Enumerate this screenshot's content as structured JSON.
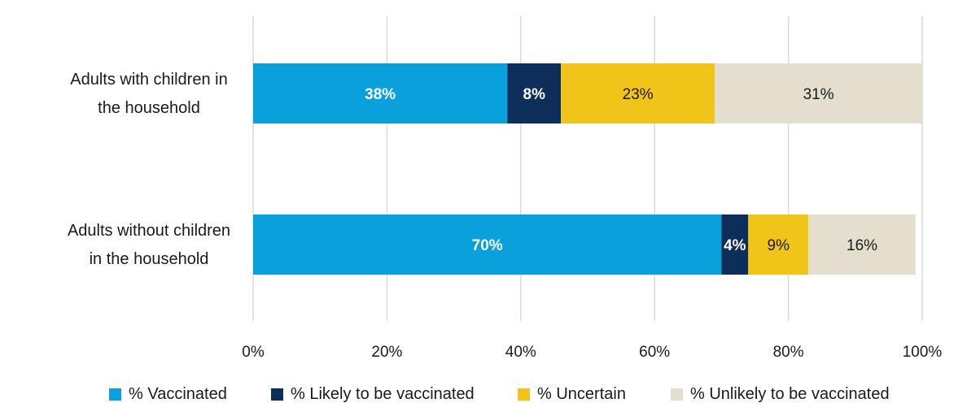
{
  "chart_data": {
    "type": "bar",
    "orientation": "horizontal",
    "stacked": true,
    "categories": [
      "Adults with children in the household",
      "Adults without children in the household"
    ],
    "category_lines": [
      [
        "Adults with children in",
        "the household"
      ],
      [
        "Adults without children",
        "in the household"
      ]
    ],
    "series": [
      {
        "name": "% Vaccinated",
        "values": [
          38,
          70
        ],
        "labels": [
          "38%",
          "70%"
        ],
        "color": "#0aa0dc",
        "label_color": "#ffffff"
      },
      {
        "name": "% Likely to be vaccinated",
        "values": [
          8,
          4
        ],
        "labels": [
          "8%",
          "4%"
        ],
        "color": "#0d2d5a",
        "label_color": "#ffffff"
      },
      {
        "name": "% Uncertain",
        "values": [
          23,
          9
        ],
        "labels": [
          "23%",
          "9%"
        ],
        "color": "#f0c419",
        "label_color": "#1a1a1a"
      },
      {
        "name": "% Unlikely to be vaccinated",
        "values": [
          31,
          16
        ],
        "labels": [
          "31%",
          "16%"
        ],
        "color": "#e3dece",
        "label_color": "#1a1a1a"
      }
    ],
    "xlim": [
      0,
      100
    ],
    "xticks": [
      0,
      20,
      40,
      60,
      80,
      100
    ],
    "xtick_labels": [
      "0%",
      "20%",
      "40%",
      "60%",
      "80%",
      "100%"
    ],
    "gridlines": true,
    "grid_color": "#d9d9d9",
    "legend_position": "bottom",
    "title": "",
    "xlabel": "",
    "ylabel": ""
  }
}
